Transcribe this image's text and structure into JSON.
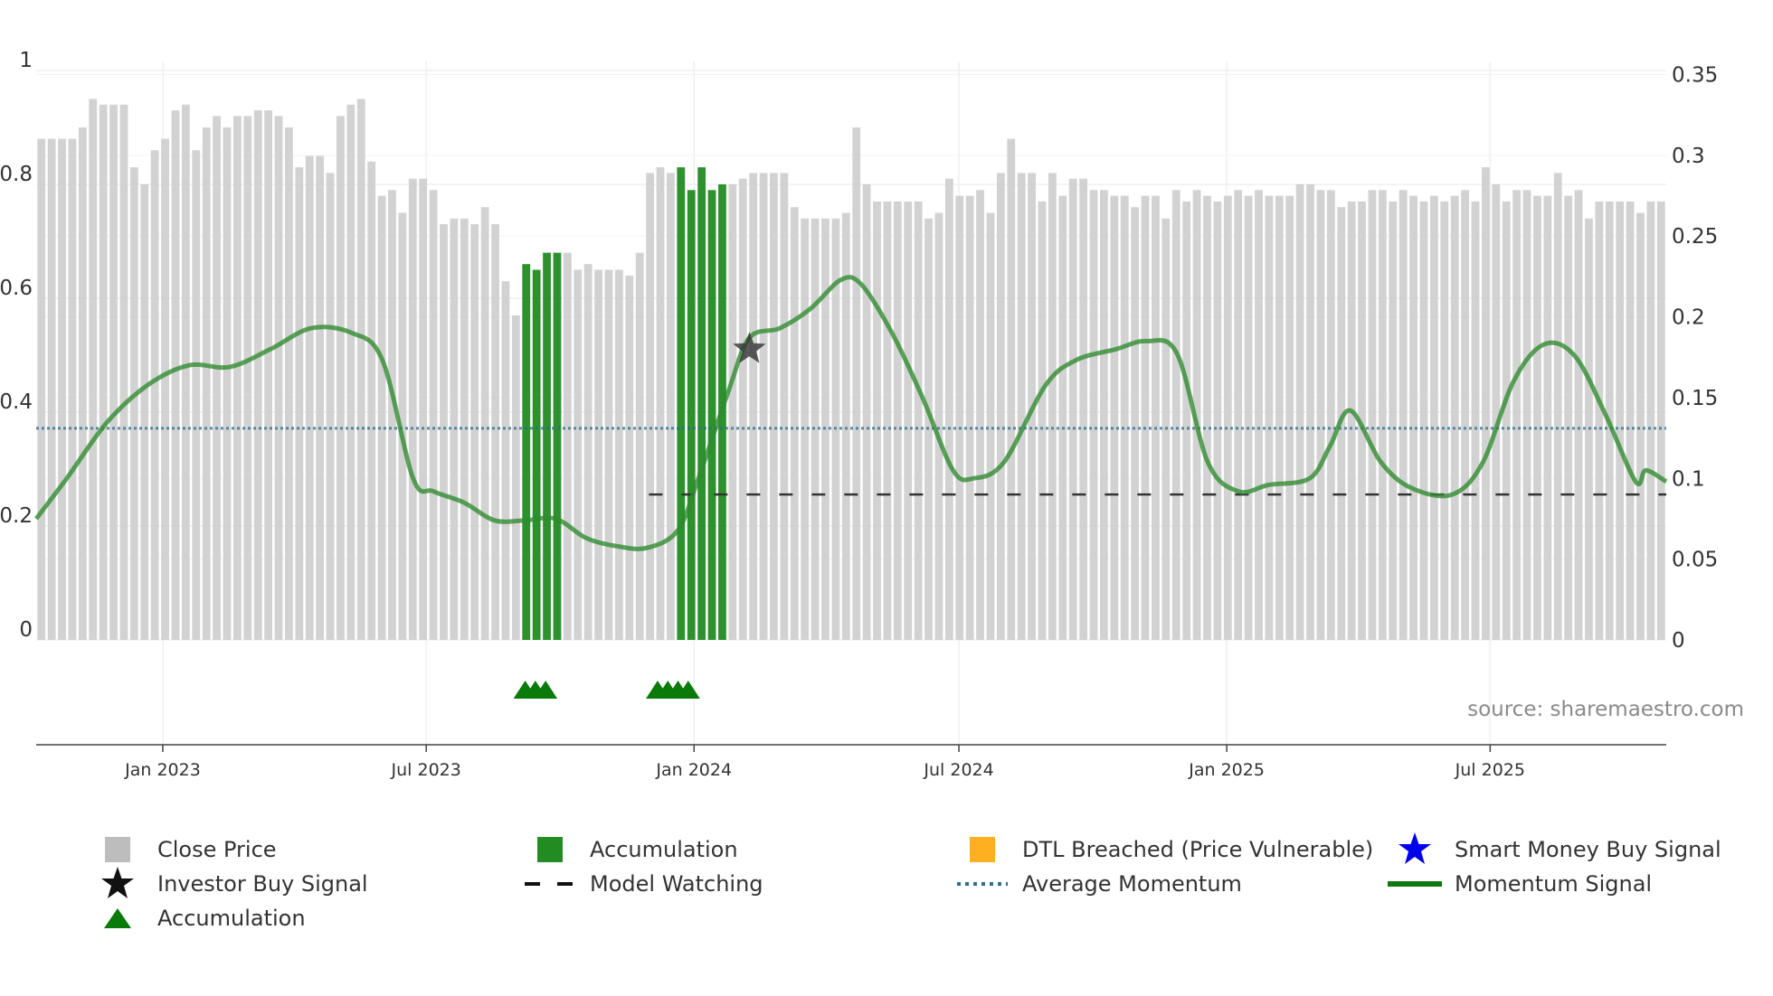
{
  "chart_data": {
    "type": "bar+line",
    "title": "",
    "left_axis": {
      "ticks": [
        "0",
        "0.2",
        "0.4",
        "0.6",
        "0.8",
        "1"
      ],
      "tick_values": [
        0,
        0.2,
        0.4,
        0.6,
        0.8,
        1
      ],
      "ylim": [
        0,
        1
      ]
    },
    "right_axis": {
      "ticks": [
        "0",
        "0.05",
        "0.1",
        "0.15",
        "0.2",
        "0.25",
        "0.3",
        "0.35"
      ],
      "tick_values": [
        0,
        0.05,
        0.1,
        0.15,
        0.2,
        0.25,
        0.3,
        0.35
      ],
      "ylim": [
        0,
        0.357
      ]
    },
    "x_axis": {
      "start": "2022-10-06",
      "end": "2025-10-30",
      "week_step_days": 7,
      "ticks": [
        {
          "label": "Jan 2023",
          "date": "2023-01-01"
        },
        {
          "label": "Jul 2023",
          "date": "2023-07-01"
        },
        {
          "label": "Jan 2024",
          "date": "2024-01-01"
        },
        {
          "label": "Jul 2024",
          "date": "2024-07-01"
        },
        {
          "label": "Jan 2025",
          "date": "2025-01-01"
        },
        {
          "label": "Jul 2025",
          "date": "2025-07-01"
        }
      ]
    },
    "close_price_weekly": [
      0.88,
      0.88,
      0.88,
      0.88,
      0.9,
      0.95,
      0.94,
      0.94,
      0.94,
      0.83,
      0.8,
      0.86,
      0.88,
      0.93,
      0.94,
      0.86,
      0.9,
      0.92,
      0.9,
      0.92,
      0.92,
      0.93,
      0.93,
      0.92,
      0.9,
      0.83,
      0.85,
      0.85,
      0.82,
      0.92,
      0.94,
      0.95,
      0.84,
      0.78,
      0.79,
      0.75,
      0.81,
      0.81,
      0.79,
      0.73,
      0.74,
      0.74,
      0.73,
      0.76,
      0.73,
      0.63,
      0.57,
      0.66,
      0.65,
      0.68,
      0.68,
      0.68,
      0.65,
      0.66,
      0.65,
      0.65,
      0.65,
      0.64,
      0.68,
      0.82,
      0.83,
      0.82,
      0.83,
      0.79,
      0.83,
      0.79,
      0.8,
      0.8,
      0.81,
      0.82,
      0.82,
      0.82,
      0.82,
      0.76,
      0.74,
      0.74,
      0.74,
      0.74,
      0.75,
      0.9,
      0.8,
      0.77,
      0.77,
      0.77,
      0.77,
      0.77,
      0.74,
      0.75,
      0.81,
      0.78,
      0.78,
      0.79,
      0.75,
      0.82,
      0.88,
      0.82,
      0.82,
      0.77,
      0.82,
      0.78,
      0.81,
      0.81,
      0.79,
      0.79,
      0.78,
      0.78,
      0.76,
      0.78,
      0.78,
      0.74,
      0.79,
      0.77,
      0.79,
      0.78,
      0.77,
      0.78,
      0.79,
      0.78,
      0.79,
      0.78,
      0.78,
      0.78,
      0.8,
      0.8,
      0.79,
      0.79,
      0.76,
      0.77,
      0.77,
      0.79,
      0.79,
      0.77,
      0.79,
      0.78,
      0.77,
      0.78,
      0.77,
      0.78,
      0.79,
      0.77,
      0.83,
      0.8,
      0.77,
      0.79,
      0.79,
      0.78,
      0.78,
      0.82,
      0.78,
      0.79,
      0.74,
      0.77,
      0.77,
      0.77,
      0.77,
      0.75,
      0.77,
      0.77
    ],
    "accumulation_bar_indexes": [
      47,
      48,
      49,
      50,
      62,
      63,
      64,
      65,
      66
    ],
    "momentum_signal": [
      [
        "2022-10-06",
        0.075
      ],
      [
        "2022-10-27",
        0.1
      ],
      [
        "2022-11-24",
        0.135
      ],
      [
        "2022-12-22",
        0.158
      ],
      [
        "2023-01-19",
        0.17
      ],
      [
        "2023-02-16",
        0.169
      ],
      [
        "2023-03-16",
        0.18
      ],
      [
        "2023-04-13",
        0.193
      ],
      [
        "2023-05-11",
        0.19
      ],
      [
        "2023-06-01",
        0.173
      ],
      [
        "2023-06-22",
        0.1
      ],
      [
        "2023-07-06",
        0.092
      ],
      [
        "2023-07-27",
        0.085
      ],
      [
        "2023-08-17",
        0.074
      ],
      [
        "2023-09-07",
        0.074
      ],
      [
        "2023-09-28",
        0.075
      ],
      [
        "2023-10-19",
        0.063
      ],
      [
        "2023-11-09",
        0.058
      ],
      [
        "2023-11-30",
        0.057
      ],
      [
        "2023-12-21",
        0.068
      ],
      [
        "2024-01-04",
        0.1
      ],
      [
        "2024-01-25",
        0.155
      ],
      [
        "2024-02-08",
        0.187
      ],
      [
        "2024-02-29",
        0.193
      ],
      [
        "2024-03-21",
        0.205
      ],
      [
        "2024-04-11",
        0.223
      ],
      [
        "2024-04-25",
        0.22
      ],
      [
        "2024-05-16",
        0.19
      ],
      [
        "2024-06-06",
        0.15
      ],
      [
        "2024-06-27",
        0.105
      ],
      [
        "2024-07-11",
        0.1
      ],
      [
        "2024-08-01",
        0.11
      ],
      [
        "2024-08-29",
        0.157
      ],
      [
        "2024-09-19",
        0.173
      ],
      [
        "2024-10-17",
        0.18
      ],
      [
        "2024-11-07",
        0.185
      ],
      [
        "2024-11-28",
        0.177
      ],
      [
        "2024-12-19",
        0.11
      ],
      [
        "2025-01-09",
        0.092
      ],
      [
        "2025-01-30",
        0.096
      ],
      [
        "2025-02-27",
        0.1
      ],
      [
        "2025-03-13",
        0.12
      ],
      [
        "2025-03-27",
        0.142
      ],
      [
        "2025-04-17",
        0.11
      ],
      [
        "2025-05-08",
        0.094
      ],
      [
        "2025-06-05",
        0.09
      ],
      [
        "2025-06-26",
        0.11
      ],
      [
        "2025-07-17",
        0.16
      ],
      [
        "2025-08-07",
        0.183
      ],
      [
        "2025-08-28",
        0.176
      ],
      [
        "2025-09-18",
        0.14
      ],
      [
        "2025-10-09",
        0.098
      ],
      [
        "2025-10-16",
        0.105
      ],
      [
        "2025-10-30",
        0.098
      ]
    ],
    "average_momentum": 0.131,
    "model_watching": {
      "value": 0.09,
      "from": "2023-12-01",
      "to": "2025-10-30"
    },
    "investor_buy_signal": {
      "date": "2024-02-08",
      "value": 0.18
    },
    "accumulation_markers": [
      "2023-09-07",
      "2023-09-14",
      "2023-09-21",
      "2023-12-07",
      "2023-12-14",
      "2023-12-21",
      "2023-12-28"
    ],
    "source": "source: sharemaestro.com",
    "legend": [
      {
        "key": "close_price",
        "label": "Close Price",
        "color": "#bdbdbd"
      },
      {
        "key": "accumulation_bar",
        "label": "Accumulation",
        "color": "#228b22"
      },
      {
        "key": "dtl_breached",
        "label": "DTL Breached (Price Vulnerable)",
        "color": "#ffb020"
      },
      {
        "key": "smart_money",
        "label": "Smart Money Buy Signal",
        "color": "#0000ee"
      },
      {
        "key": "investor_buy",
        "label": "Investor Buy Signal",
        "color": "#111111"
      },
      {
        "key": "model_watching",
        "label": "Model Watching",
        "color": "#111111"
      },
      {
        "key": "average_momentum",
        "label": "Average Momentum",
        "color": "#2a7090"
      },
      {
        "key": "momentum_signal",
        "label": "Momentum Signal",
        "color": "#117711"
      },
      {
        "key": "accumulation_marker",
        "label": "Accumulation",
        "color": "#0a7a0a"
      }
    ]
  }
}
